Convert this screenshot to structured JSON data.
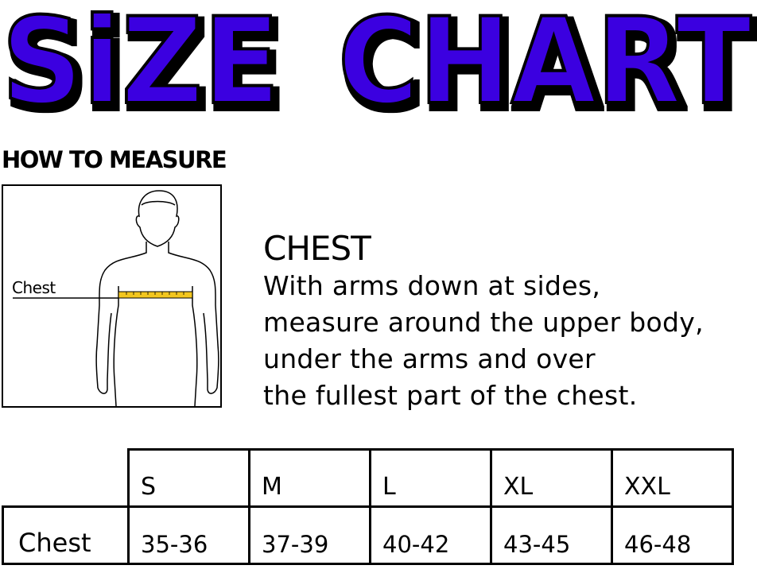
{
  "title": "SiZE CHART",
  "title_parts": [
    "SiZE",
    "CHART"
  ],
  "title_color": "#3a00e0",
  "how_to_measure": "HOW TO MEASURE",
  "figure": {
    "label": "Chest",
    "tape_color": "#f2c61f"
  },
  "measure": {
    "heading": "CHEST",
    "lines": [
      "With arms down at sides,",
      "measure around the upper body,",
      "under the arms and over",
      "the fullest part of the chest."
    ]
  },
  "table": {
    "sizes": [
      "S",
      "M",
      "L",
      "XL",
      "XXL"
    ],
    "rows": [
      {
        "label": "Chest",
        "values": [
          "35-36",
          "37-39",
          "40-42",
          "43-45",
          "46-48"
        ]
      }
    ]
  }
}
